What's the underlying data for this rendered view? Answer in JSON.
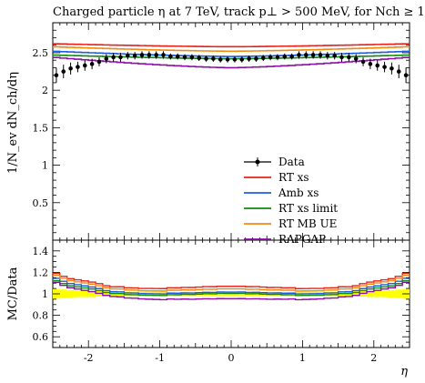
{
  "chart_data": {
    "type": "line",
    "title": "Charged particle η at 7 TeV, track p⊥ > 500 MeV, for Nch ≥ 1",
    "xlabel": "η",
    "ylabel_main": "1/N_ev dN_ch/dη",
    "ylabel_ratio": "MC/Data",
    "xlim": [
      -2.5,
      2.5
    ],
    "ylim_main": [
      0,
      2.9
    ],
    "ylim_ratio": [
      0.5,
      1.5
    ],
    "xticks": [
      "-2",
      "-1",
      "0",
      "1",
      "2"
    ],
    "xtick_values": [
      -2,
      -1,
      0,
      1,
      2
    ],
    "yticks_main": [
      "0.5",
      "1",
      "1.5",
      "2",
      "2.5"
    ],
    "ytick_values_main": [
      0.5,
      1,
      1.5,
      2,
      2.5
    ],
    "yticks_ratio": [
      "0.6",
      "0.8",
      "1",
      "1.2",
      "1.4"
    ],
    "ytick_values_ratio": [
      0.6,
      0.8,
      1.0,
      1.2,
      1.4
    ],
    "legend_position": "lower-right",
    "bin_edges": [
      -2.5,
      -2.4,
      -2.3,
      -2.2,
      -2.1,
      -2.0,
      -1.9,
      -1.8,
      -1.7,
      -1.6,
      -1.5,
      -1.4,
      -1.3,
      -1.2,
      -1.1,
      -1.0,
      -0.9,
      -0.8,
      -0.7,
      -0.6,
      -0.5,
      -0.4,
      -0.3,
      -0.2,
      -0.1,
      0.0,
      0.1,
      0.2,
      0.3,
      0.4,
      0.5,
      0.6,
      0.7,
      0.8,
      0.9,
      1.0,
      1.1,
      1.2,
      1.3,
      1.4,
      1.5,
      1.6,
      1.7,
      1.8,
      1.9,
      2.0,
      2.1,
      2.2,
      2.3,
      2.4,
      2.5
    ],
    "data": {
      "name": "Data",
      "color": "#000000",
      "values": [
        2.2,
        2.25,
        2.29,
        2.31,
        2.33,
        2.35,
        2.38,
        2.42,
        2.44,
        2.44,
        2.46,
        2.46,
        2.47,
        2.47,
        2.47,
        2.47,
        2.45,
        2.45,
        2.44,
        2.44,
        2.43,
        2.42,
        2.42,
        2.41,
        2.41,
        2.41,
        2.41,
        2.42,
        2.42,
        2.43,
        2.44,
        2.44,
        2.45,
        2.45,
        2.47,
        2.47,
        2.47,
        2.47,
        2.46,
        2.46,
        2.44,
        2.44,
        2.42,
        2.38,
        2.35,
        2.33,
        2.31,
        2.29,
        2.25,
        2.2
      ],
      "errors": [
        0.1,
        0.09,
        0.08,
        0.07,
        0.07,
        0.07,
        0.06,
        0.06,
        0.06,
        0.06,
        0.05,
        0.05,
        0.05,
        0.05,
        0.05,
        0.05,
        0.04,
        0.04,
        0.04,
        0.04,
        0.04,
        0.04,
        0.04,
        0.04,
        0.04,
        0.04,
        0.04,
        0.04,
        0.04,
        0.04,
        0.04,
        0.04,
        0.04,
        0.04,
        0.05,
        0.05,
        0.05,
        0.05,
        0.05,
        0.05,
        0.06,
        0.06,
        0.06,
        0.06,
        0.07,
        0.07,
        0.07,
        0.08,
        0.09,
        0.1
      ]
    },
    "series": [
      {
        "name": "RT xs",
        "color": "#e8211a",
        "center": 2.58,
        "edge": 2.62,
        "dip": 0.0
      },
      {
        "name": "Amb xs",
        "color": "#1d5fe0",
        "center": 2.45,
        "edge": 2.52,
        "dip": 0.0
      },
      {
        "name": "RT xs limit",
        "color": "#118a10",
        "center": 2.42,
        "edge": 2.47,
        "dip": 0.0
      },
      {
        "name": "RT MB UE",
        "color": "#f58a10",
        "center": 2.52,
        "edge": 2.58,
        "dip": 0.0
      },
      {
        "name": "RAPGAP",
        "color": "#8b10a5",
        "center": 2.3,
        "edge": 2.44,
        "dip": 0.0
      }
    ]
  }
}
